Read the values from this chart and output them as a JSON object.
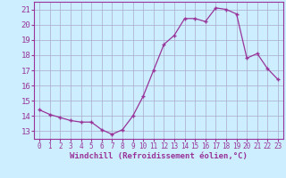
{
  "x": [
    0,
    1,
    2,
    3,
    4,
    5,
    6,
    7,
    8,
    9,
    10,
    11,
    12,
    13,
    14,
    15,
    16,
    17,
    18,
    19,
    20,
    21,
    22,
    23
  ],
  "y": [
    14.4,
    14.1,
    13.9,
    13.7,
    13.6,
    13.6,
    13.1,
    12.8,
    13.1,
    14.0,
    15.3,
    17.0,
    18.7,
    19.3,
    20.4,
    20.4,
    20.2,
    21.1,
    21.0,
    20.7,
    17.8,
    18.1,
    17.1,
    16.4
  ],
  "ylim": [
    12.5,
    21.5
  ],
  "yticks": [
    13,
    14,
    15,
    16,
    17,
    18,
    19,
    20,
    21
  ],
  "xlim": [
    -0.5,
    23.5
  ],
  "xlabel": "Windchill (Refroidissement éolien,°C)",
  "line_color": "#993399",
  "marker": "+",
  "bg_color": "#cceeff",
  "grid_color": "#aaaacc",
  "xlabel_fontsize": 6.5,
  "ytick_fontsize": 6.5,
  "xtick_fontsize": 5.5
}
